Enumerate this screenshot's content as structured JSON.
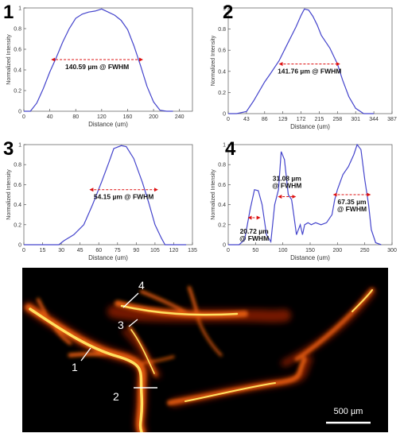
{
  "panels": [
    {
      "number": "1",
      "chart_data": {
        "type": "line",
        "xlabel": "Distance (um)",
        "ylabel": "Normalized Intensity",
        "xlim": [
          0,
          260
        ],
        "ylim": [
          0,
          1
        ],
        "xticks": [
          0,
          40,
          80,
          120,
          160,
          200,
          240
        ],
        "yticks": [
          0,
          0.2,
          0.4,
          0.6,
          0.8,
          1
        ],
        "x": [
          0,
          10,
          20,
          30,
          40,
          50,
          60,
          70,
          80,
          90,
          100,
          110,
          120,
          130,
          140,
          150,
          160,
          170,
          180,
          190,
          200,
          210,
          220,
          230
        ],
        "y": [
          0,
          0,
          0.08,
          0.22,
          0.38,
          0.52,
          0.67,
          0.8,
          0.9,
          0.94,
          0.96,
          0.97,
          0.99,
          0.96,
          0.93,
          0.88,
          0.79,
          0.63,
          0.44,
          0.24,
          0.09,
          0.01,
          0,
          0
        ],
        "fwhm": {
          "x1": 43,
          "x2": 183,
          "y": 0.5
        },
        "annotation": "140.59 µm @ FWHM"
      }
    },
    {
      "number": "2",
      "chart_data": {
        "type": "line",
        "xlabel": "Distance (um)",
        "ylabel": "Normalized Intensity",
        "xlim": [
          0,
          387
        ],
        "ylim": [
          0,
          1
        ],
        "xticks": [
          0,
          43,
          86,
          129,
          172,
          215,
          258,
          301,
          344,
          387
        ],
        "xticklabels": [
          "0",
          "43",
          "86",
          "129",
          "172",
          "215",
          "258",
          "301",
          "344",
          "387"
        ],
        "yticks": [
          0,
          0.2,
          0.4,
          0.6,
          0.8,
          1
        ],
        "x": [
          0,
          20,
          43,
          60,
          86,
          100,
          120,
          140,
          160,
          172,
          180,
          190,
          200,
          210,
          220,
          240,
          258,
          270,
          285,
          301,
          320,
          344
        ],
        "y": [
          0,
          0,
          0.02,
          0.12,
          0.3,
          0.38,
          0.5,
          0.66,
          0.82,
          0.93,
          0.99,
          0.98,
          0.92,
          0.84,
          0.74,
          0.62,
          0.47,
          0.32,
          0.16,
          0.05,
          0,
          0
        ],
        "fwhm": {
          "x1": 121,
          "x2": 263,
          "y": 0.47
        },
        "annotation": "141.76 µm @ FWHM"
      }
    },
    {
      "number": "3",
      "chart_data": {
        "type": "line",
        "xlabel": "Distance (um)",
        "ylabel": "Normalized Intensity",
        "xlim": [
          0,
          135
        ],
        "ylim": [
          0,
          1
        ],
        "xticks": [
          0,
          15,
          30,
          45,
          60,
          75,
          90,
          105,
          120,
          135
        ],
        "yticks": [
          0,
          0.2,
          0.4,
          0.6,
          0.8,
          1
        ],
        "x": [
          0,
          15,
          28,
          32,
          40,
          48,
          55,
          62,
          68,
          72,
          78,
          82,
          88,
          95,
          100,
          105,
          110,
          113,
          120,
          130
        ],
        "y": [
          0,
          0,
          0,
          0.04,
          0.1,
          0.2,
          0.4,
          0.62,
          0.82,
          0.96,
          0.99,
          0.98,
          0.86,
          0.62,
          0.42,
          0.2,
          0.07,
          0,
          0,
          0
        ],
        "fwhm": {
          "x1": 53,
          "x2": 107,
          "y": 0.55
        },
        "annotation": "54.15 µm @ FWHM"
      }
    },
    {
      "number": "4",
      "chart_data": {
        "type": "line",
        "xlabel": "Distance (um)",
        "ylabel": "Normalized Intensity",
        "xlim": [
          0,
          300
        ],
        "ylim": [
          0,
          1
        ],
        "xticks": [
          0,
          50,
          100,
          150,
          200,
          250,
          300
        ],
        "yticks": [
          0,
          0.2,
          0.4,
          0.6,
          0.8,
          1
        ],
        "x": [
          0,
          20,
          30,
          40,
          48,
          55,
          62,
          70,
          78,
          85,
          92,
          97,
          103,
          110,
          116,
          120,
          125,
          132,
          136,
          140,
          146,
          152,
          160,
          170,
          180,
          190,
          195,
          200,
          210,
          220,
          230,
          236,
          243,
          250,
          257,
          262,
          270,
          280
        ],
        "y": [
          0,
          0,
          0.05,
          0.35,
          0.55,
          0.54,
          0.4,
          0.1,
          0.03,
          0.4,
          0.55,
          0.93,
          0.85,
          0.5,
          0.45,
          0.3,
          0.1,
          0.2,
          0.1,
          0.2,
          0.22,
          0.2,
          0.22,
          0.2,
          0.22,
          0.3,
          0.45,
          0.55,
          0.7,
          0.78,
          0.9,
          1.0,
          0.95,
          0.65,
          0.4,
          0.15,
          0.02,
          0
        ],
        "fwhm": [
          {
            "x1": 37,
            "x2": 58,
            "y": 0.27,
            "annotation": "20.72 µm @ FWHM"
          },
          {
            "x1": 92,
            "x2": 123,
            "y": 0.48,
            "annotation": "31.08 µm @ FWHM"
          },
          {
            "x1": 193,
            "x2": 260,
            "y": 0.5,
            "annotation": "67.35 µm @ FWHM"
          }
        ]
      }
    }
  ],
  "microscopy": {
    "labels": [
      "1",
      "2",
      "3",
      "4"
    ],
    "scalebar": "500 µm"
  },
  "colors": {
    "curve": "#4444cc",
    "fwhm_arrow": "#dd1111",
    "micro_bg": "#000000",
    "vessel_hot": "#ffe060",
    "vessel_mid": "#e05a10",
    "vessel_dark": "#8a1a05"
  }
}
